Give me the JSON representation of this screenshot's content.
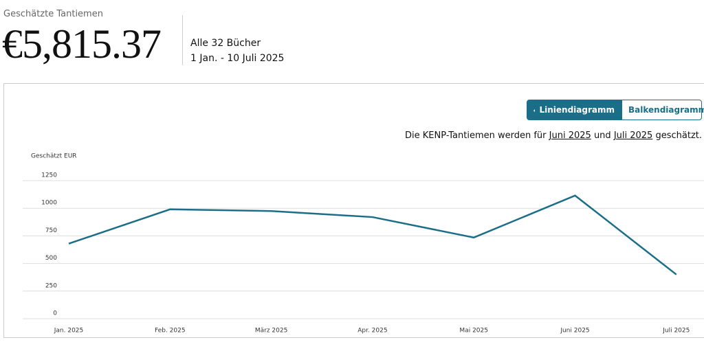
{
  "header": {
    "label": "Geschätzte Tantiemen",
    "amount": "€5,815.37",
    "books": "Alle 32 Bücher",
    "range": "1 Jan. - 10 Juli 2025"
  },
  "toggle": {
    "active": "Liniendiagramm",
    "inactive": "Balkendiagramm"
  },
  "note": [
    "Die KENP-Tantiemen werden für",
    "Juni 2025",
    "und",
    "Juli 2025",
    "geschätzt."
  ],
  "chart_data": {
    "type": "line",
    "y_label": "Geschätzt EUR",
    "categories": [
      "Jan. 2025",
      "Feb. 2025",
      "März 2025",
      "Apr. 2025",
      "Mai 2025",
      "Juni 2025",
      "Juli 2025"
    ],
    "values": [
      680,
      990,
      975,
      920,
      735,
      1115,
      400
    ],
    "color": "#1b6e87",
    "ylim": [
      0,
      1250
    ],
    "yticks": [
      0,
      250,
      500,
      750,
      1000,
      1250
    ],
    "grid": true
  }
}
